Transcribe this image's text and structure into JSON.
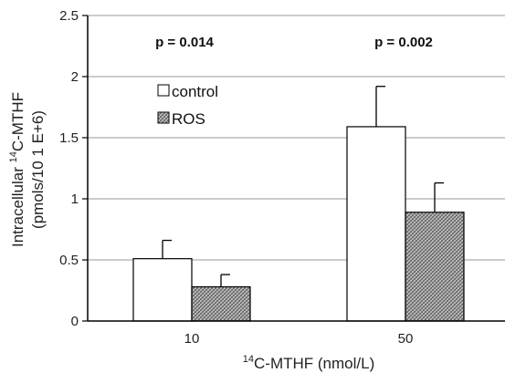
{
  "chart_data": {
    "type": "bar",
    "categories": [
      "10",
      "50"
    ],
    "series": [
      {
        "name": "control",
        "values": [
          0.51,
          1.59
        ],
        "errors": [
          0.15,
          0.33
        ],
        "fill": "white"
      },
      {
        "name": "ROS",
        "values": [
          0.28,
          0.89
        ],
        "errors": [
          0.1,
          0.24
        ],
        "fill": "crosshatch-gray"
      }
    ],
    "annotations": [
      "p = 0.014",
      "p = 0.002"
    ],
    "xlabel": {
      "prefix": "14",
      "rest": "C-MTHF (nmol/L)"
    },
    "ylabel": {
      "line1_pre": "Intracellular ",
      "line1_sup": "14",
      "line1_post": "C-MTHF",
      "line2": "(pmols/10 1 E+6)"
    },
    "ylim": [
      0,
      2.5
    ],
    "yticks": [
      "0",
      "0.5",
      "1",
      "1.5",
      "2",
      "2.5"
    ],
    "grid": true,
    "legend_position": "upper-left"
  },
  "colors": {
    "control_fill": "#ffffff",
    "ros_fill": "#8a8a8a",
    "outline": "#000000",
    "grid": "#9a9a9a"
  }
}
